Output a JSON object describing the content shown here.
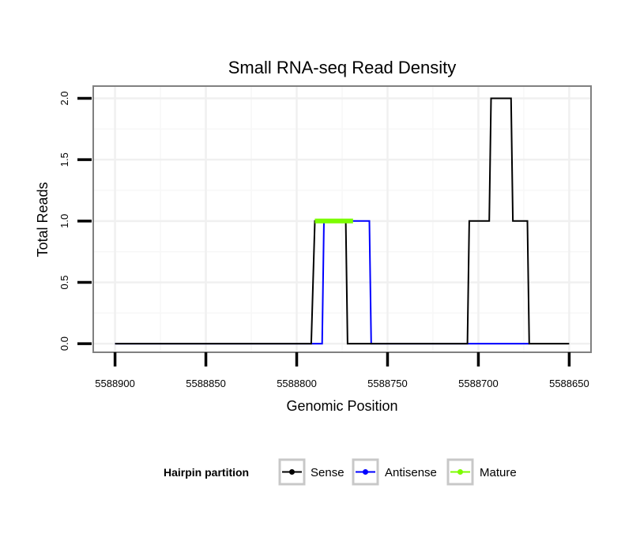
{
  "chart_data": {
    "type": "line",
    "title": "Small RNA-seq Read Density",
    "xlabel": "Genomic Position",
    "ylabel": "Total Reads",
    "x_reversed": true,
    "xlim": [
      5588912,
      5588638
    ],
    "ylim": [
      -0.07,
      2.1
    ],
    "x_ticks": [
      5588900,
      5588850,
      5588800,
      5588750,
      5588700,
      5588650
    ],
    "x_tick_labels": [
      "5588900",
      "5588850",
      "5588800",
      "5588750",
      "5588700",
      "5588650"
    ],
    "y_ticks": [
      0.0,
      0.5,
      1.0,
      1.5,
      2.0
    ],
    "y_tick_labels": [
      "0.0",
      "0.5",
      "1.0",
      "1.5",
      "2.0"
    ],
    "grid": true,
    "legend": {
      "title": "Hairpin partition",
      "position": "bottom"
    },
    "series": [
      {
        "name": "Sense",
        "color": "#000000",
        "x": [
          5588900,
          5588792,
          5588790,
          5588773,
          5588772,
          5588706,
          5588705,
          5588694,
          5588693,
          5588682,
          5588681,
          5588673,
          5588672,
          5588650
        ],
        "y": [
          0,
          0,
          1,
          1,
          0,
          0,
          1,
          1,
          2,
          2,
          1,
          1,
          0,
          0
        ]
      },
      {
        "name": "Antisense",
        "color": "#0000ff",
        "x": [
          5588900,
          5588786,
          5588785,
          5588760,
          5588759,
          5588672
        ],
        "y": [
          0,
          0,
          1,
          1,
          0,
          0
        ]
      },
      {
        "name": "Mature",
        "color": "#7cfc00",
        "x": [
          5588790,
          5588769
        ],
        "y": [
          1,
          1
        ]
      }
    ]
  }
}
